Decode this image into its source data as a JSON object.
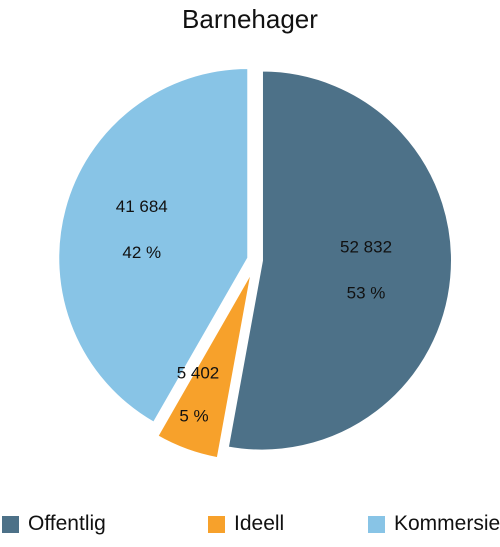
{
  "chart_data": {
    "type": "pie",
    "title": "Barnehager",
    "slices": [
      {
        "name": "Offentlig",
        "value": 52832,
        "value_label": "52 832",
        "percent_label": "53 %",
        "color": "#4d7188"
      },
      {
        "name": "Ideell",
        "value": 5402,
        "value_label": "5 402",
        "percent_label": "5 %",
        "color": "#f7a12b"
      },
      {
        "name": "Kommersiell",
        "value": 41684,
        "value_label": "41 684",
        "percent_label": "42 %",
        "color": "#88c4e6"
      }
    ],
    "legend_position": "bottom",
    "exploded": true
  }
}
